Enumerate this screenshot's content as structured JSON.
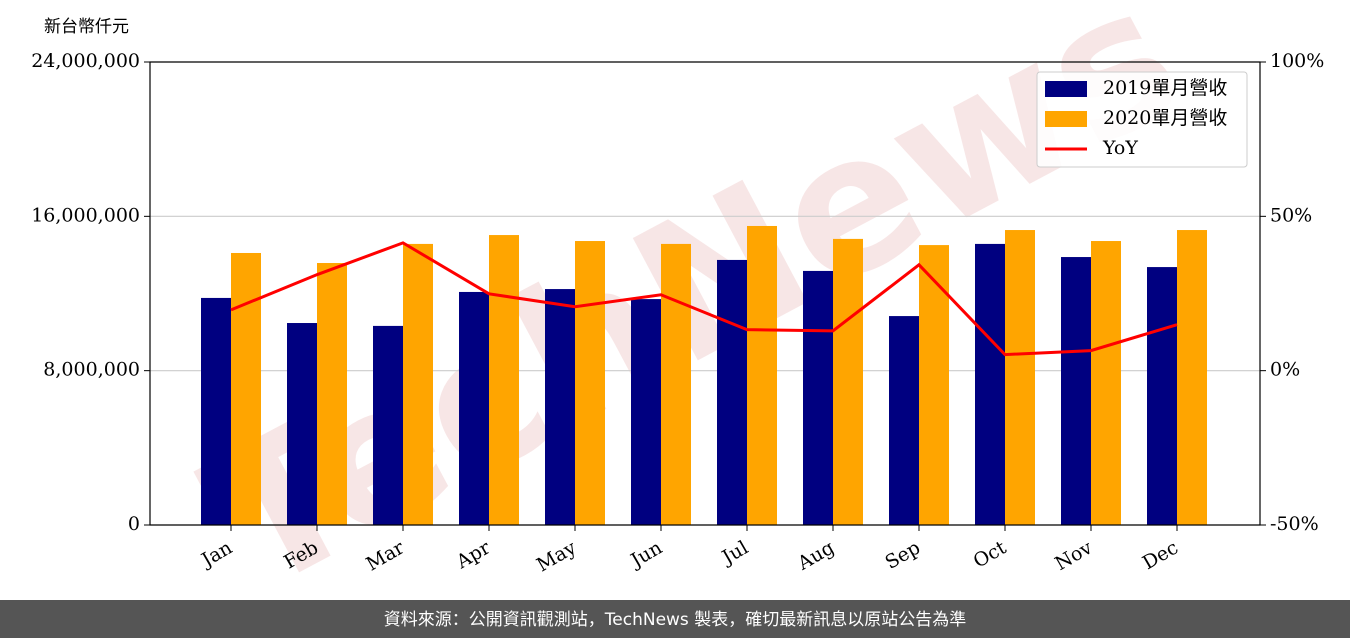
{
  "chart_data": {
    "type": "bar_line",
    "y_label": "新台幣仟元",
    "categories": [
      "Jan",
      "Feb",
      "Mar",
      "Apr",
      "May",
      "Jun",
      "Jul",
      "Aug",
      "Sep",
      "Oct",
      "Nov",
      "Dec"
    ],
    "series": [
      {
        "name": "2019單月營收",
        "color": "#000080",
        "type": "bar",
        "values": [
          11770000,
          10470000,
          10320000,
          12080000,
          12230000,
          11710000,
          13740000,
          13170000,
          10830000,
          14570000,
          13890000,
          13370000
        ]
      },
      {
        "name": "2020單月營收",
        "color": "#ffa500",
        "type": "bar",
        "values": [
          14100000,
          13580000,
          14570000,
          15030000,
          14720000,
          14570000,
          15500000,
          14830000,
          14510000,
          15290000,
          14720000,
          15290000
        ]
      },
      {
        "name": "YoY",
        "color": "#ff0000",
        "type": "line",
        "axis": "y2",
        "values": [
          19.7,
          31.1,
          41.4,
          24.9,
          20.7,
          24.6,
          13.3,
          12.9,
          34.3,
          5.2,
          6.5,
          14.9
        ]
      }
    ],
    "ylim": [
      0,
      24000000
    ],
    "yticks": [
      0,
      {
        "value": 8000000,
        "label": "8,000,000"
      },
      {
        "value": 16000000,
        "label": "16,000,000"
      },
      {
        "value": 24000000,
        "label": "24,000,000"
      }
    ],
    "y2lim": [
      -50,
      100
    ],
    "y2ticks": [
      {
        "value": -50,
        "label": "-50%"
      },
      {
        "value": 0,
        "label": "0%"
      },
      {
        "value": 50,
        "label": "50%"
      },
      {
        "value": 100,
        "label": "100%"
      }
    ],
    "grid": true,
    "legend": "upper right",
    "watermark": "TechNews",
    "source": "資料來源：公開資訊觀測站，TechNews 製表，確切最新訊息以原站公告為準"
  }
}
